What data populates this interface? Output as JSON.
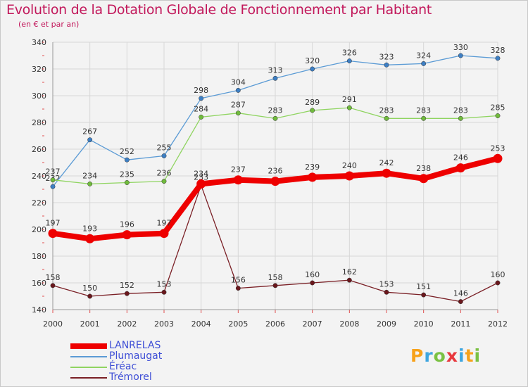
{
  "chart_data": {
    "type": "line",
    "title": "Evolution de la Dotation Globale de Fonctionnement par Habitant",
    "subtitle": "(en € et par an)",
    "xlabel": "",
    "ylabel": "",
    "ylim": [
      140,
      340
    ],
    "yticks": [
      140,
      160,
      180,
      200,
      220,
      240,
      260,
      280,
      300,
      320,
      340
    ],
    "grid": true,
    "categories": [
      "2000",
      "2001",
      "2002",
      "2003",
      "2004",
      "2005",
      "2006",
      "2007",
      "2008",
      "2009",
      "2010",
      "2011",
      "2012"
    ],
    "series": [
      {
        "name": "Plumaugat",
        "color": "#5b9bd5",
        "marker": "#3d7fc4",
        "values": [
          232,
          267,
          252,
          255,
          298,
          304,
          313,
          320,
          326,
          323,
          324,
          330,
          328
        ]
      },
      {
        "name": "Éréac",
        "color": "#8fd460",
        "marker": "#70bb3c",
        "values": [
          237,
          234,
          235,
          236,
          284,
          287,
          283,
          289,
          291,
          283,
          283,
          283,
          285
        ]
      },
      {
        "name": "Trémorel",
        "color": "#7a1f25",
        "marker": "#6a171c",
        "values": [
          158,
          150,
          152,
          153,
          233,
          156,
          158,
          160,
          162,
          153,
          151,
          146,
          160
        ]
      },
      {
        "name": "LANRELAS",
        "color": "#ee0000",
        "marker": "#ee0000",
        "values": [
          197,
          193,
          196,
          197,
          234,
          237,
          236,
          239,
          240,
          242,
          238,
          246,
          253
        ]
      }
    ],
    "legend": [
      "LANRELAS",
      "Plumaugat",
      "Éréac",
      "Trémorel"
    ]
  },
  "logo": {
    "letters": [
      "P",
      "r",
      "o",
      "x",
      "i",
      "t",
      "i"
    ],
    "colors": [
      "#f7a21b",
      "#3ea6e0",
      "#7ac143",
      "#e8383d",
      "#3ea6e0",
      "#f7a21b",
      "#7ac143"
    ]
  }
}
